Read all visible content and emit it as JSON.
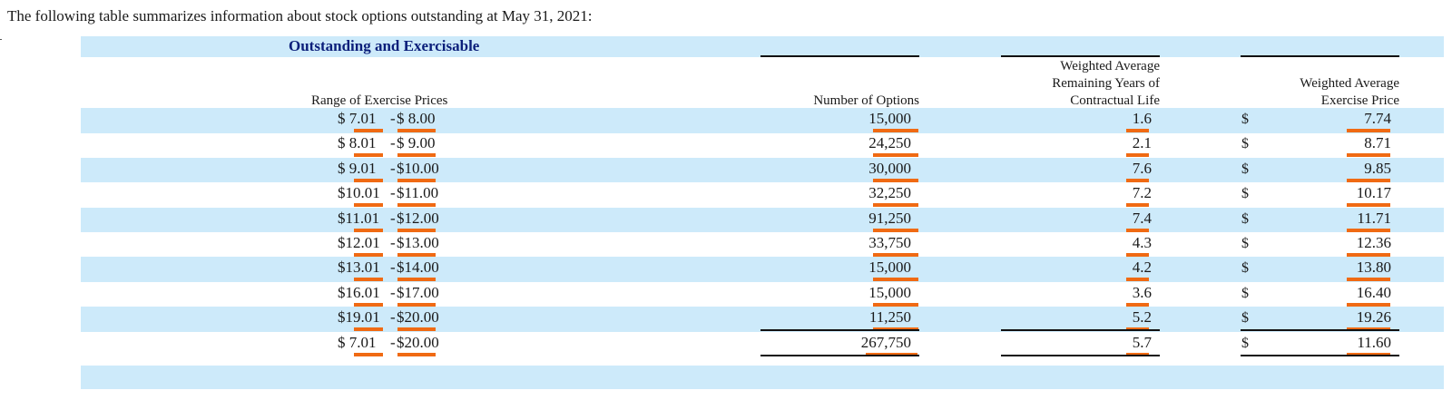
{
  "intro": "The following table summarizes information about stock options outstanding at May 31, 2021:",
  "section_title": "Outstanding and Exercisable",
  "headers": {
    "range": "Range of Exercise Prices",
    "options": "Number of Options",
    "life_line1": "Weighted Average",
    "life_line2": "Remaining Years of",
    "life_line3": "Contractual Life",
    "price_line1": "Weighted Average",
    "price_line2": "Exercise Price"
  },
  "rows": [
    {
      "low": "$  7.01",
      "high": "$  8.00",
      "options": "15,000",
      "life": "1.6",
      "currency": "$",
      "price": "7.74"
    },
    {
      "low": "$  8.01",
      "high": "$  9.00",
      "options": "24,250",
      "life": "2.1",
      "currency": "$",
      "price": "8.71"
    },
    {
      "low": "$  9.01",
      "high": "$10.00",
      "options": "30,000",
      "life": "7.6",
      "currency": "$",
      "price": "9.85"
    },
    {
      "low": "$10.01",
      "high": "$11.00",
      "options": "32,250",
      "life": "7.2",
      "currency": "$",
      "price": "10.17"
    },
    {
      "low": "$11.01",
      "high": "$12.00",
      "options": "91,250",
      "life": "7.4",
      "currency": "$",
      "price": "11.71"
    },
    {
      "low": "$12.01",
      "high": "$13.00",
      "options": "33,750",
      "life": "4.3",
      "currency": "$",
      "price": "12.36"
    },
    {
      "low": "$13.01",
      "high": "$14.00",
      "options": "15,000",
      "life": "4.2",
      "currency": "$",
      "price": "13.80"
    },
    {
      "low": "$16.01",
      "high": "$17.00",
      "options": "15,000",
      "life": "3.6",
      "currency": "$",
      "price": "16.40"
    },
    {
      "low": "$19.01",
      "high": "$20.00",
      "options": "11,250",
      "life": "5.2",
      "currency": "$",
      "price": "19.26"
    }
  ],
  "total": {
    "low": "$  7.01",
    "high": "$20.00",
    "options": "267,750",
    "life": "5.7",
    "currency": "$",
    "price": "11.60"
  },
  "colors": {
    "band": "#cdeafa",
    "title": "#0b1f7a",
    "highlight": "#f06a13",
    "rule": "#111111"
  }
}
